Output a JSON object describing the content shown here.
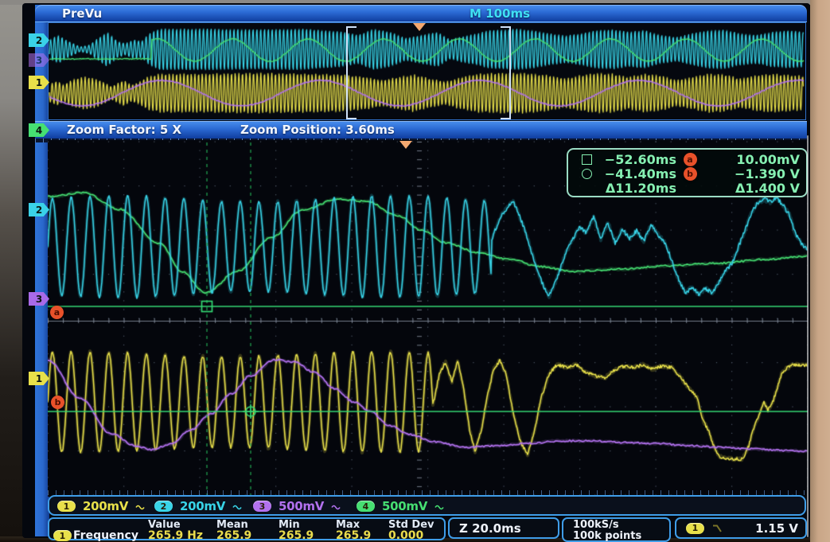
{
  "top_bar": {
    "mode": "PreVu",
    "timebase": "M 100ms"
  },
  "zoom_bar": {
    "factor": "Zoom Factor: 5 X",
    "position": "Zoom Position: 3.60ms"
  },
  "overview_markers": {
    "ch2": "2",
    "ch3": "3",
    "ch1": "1"
  },
  "main_markers": {
    "ch2": "2",
    "ch3": "3",
    "ch1": "1",
    "ch4": "4"
  },
  "cursor_readout": {
    "rows": [
      {
        "marker": "square",
        "time": "−52.60ms",
        "badge": "a",
        "value": "10.00mV"
      },
      {
        "marker": "circle",
        "time": "−41.40ms",
        "badge": "b",
        "value": "−1.390 V"
      },
      {
        "marker": "",
        "time": "Δ11.20ms",
        "badge": "",
        "value": "Δ1.400 V"
      }
    ]
  },
  "channels": [
    {
      "id": "1",
      "scale": "200mV"
    },
    {
      "id": "2",
      "scale": "200mV"
    },
    {
      "id": "3",
      "scale": "500mV"
    },
    {
      "id": "4",
      "scale": "500mV"
    }
  ],
  "bottom": {
    "zoom_scale": "Z 20.0ms",
    "sample_rate": "100kS/s",
    "record_length": "100k points",
    "trigger": {
      "channel": "1",
      "level": "1.15 V"
    }
  },
  "measurement": {
    "headers": {
      "value": "Value",
      "mean": "Mean",
      "min": "Min",
      "max": "Max",
      "std_dev": "Std Dev"
    },
    "rows": [
      {
        "channel": "1",
        "name": "Frequency",
        "value": "265.9 Hz",
        "mean": "265.9",
        "min": "265.9",
        "max": "265.9",
        "std_dev": "0.000"
      }
    ]
  },
  "colors": {
    "ch1": "#e8e04a",
    "ch2": "#38d4e8",
    "ch3": "#b271ee",
    "ch4": "#46df72",
    "cursor": "#34d873",
    "cursor_dim": "#1f9e4e",
    "badge": "#e8512a",
    "grid_dot": "#4d5866",
    "grid_axis": "#9aa4b4",
    "trigger_marker": "#f4a870"
  }
}
